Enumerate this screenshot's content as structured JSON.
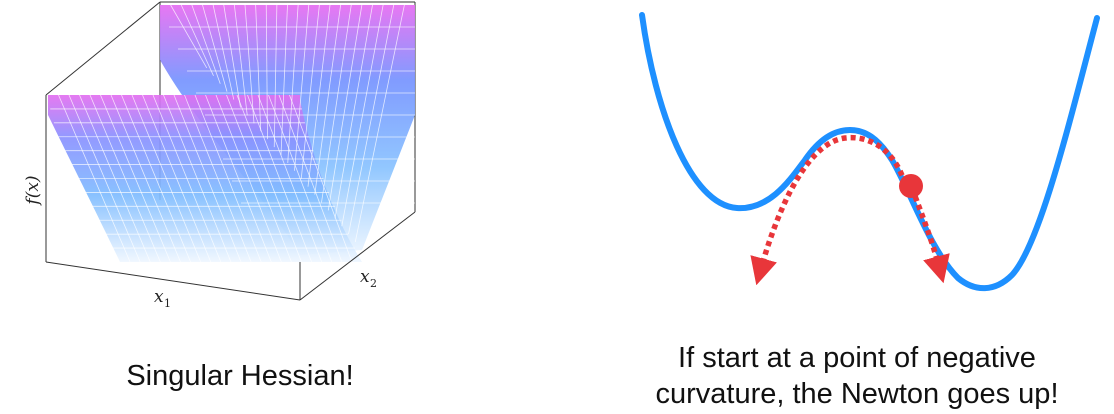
{
  "left_panel": {
    "axis_labels": {
      "z": "f(x)",
      "x1": "x",
      "x1_sub": "1",
      "x2": "x",
      "x2_sub": "2"
    },
    "caption": "Singular Hessian!",
    "colors": {
      "low": "#dcecff",
      "mid": "#5aa8ff",
      "high": "#e070f0",
      "box": "#333333"
    }
  },
  "right_panel": {
    "caption_line1": "If start at a point of negative",
    "caption_line2": "curvature, the Newton goes up!",
    "colors": {
      "curve": "#1e90ff",
      "point": "#e8363a",
      "arrow": "#e8363a"
    }
  }
}
